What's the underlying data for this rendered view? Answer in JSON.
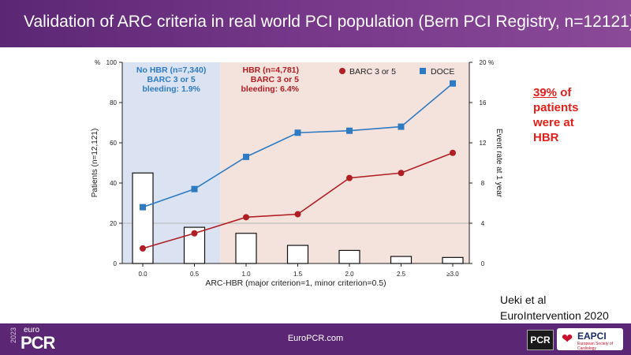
{
  "header": {
    "title": "Validation of ARC criteria in real world PCI population (Bern PCI Registry, n=12121)"
  },
  "side_note": {
    "line1_underlined": "39%",
    "line1_rest": " of",
    "line2": "patients",
    "line3": "were at",
    "line4": "HBR"
  },
  "reference": {
    "line1": "Ueki et al",
    "line2": "EuroIntervention 2020"
  },
  "footer": {
    "center": "EuroPCR.com",
    "logo_year": "2023",
    "logo_euro": "euro",
    "logo_pcr": "PCR",
    "badge_pcr": "PCR",
    "badge_eapci": "EAPCI",
    "badge_eapci_sub": "European Society of Cardiology"
  },
  "colors": {
    "header": "#5b2774",
    "no_hbr_bg": "#dbe3f3",
    "hbr_bg": "#f4e3dd",
    "barc": "#b01e24",
    "doce": "#2e7bc3",
    "no_hbr_text": "#2e7bc3",
    "hbr_text": "#b01e24",
    "highlight": "#e3201b"
  },
  "chart_data": {
    "type": "bar+line",
    "categories": [
      "0.0",
      "0.5",
      "1.0",
      "1.5",
      "2.0",
      "2.5",
      "≥3.0"
    ],
    "bars": {
      "axis": "left",
      "values": [
        45,
        18,
        15,
        9,
        6.5,
        3.5,
        3
      ]
    },
    "series": [
      {
        "name": "BARC 3 or 5",
        "axis": "right",
        "marker": "circle",
        "values": [
          1.5,
          3,
          4.6,
          4.9,
          8.5,
          9,
          11
        ]
      },
      {
        "name": "DOCE",
        "axis": "right",
        "marker": "square",
        "values": [
          5.6,
          7.4,
          10.6,
          13,
          13.2,
          13.6,
          17.9
        ]
      }
    ],
    "xlabel": "ARC-HBR (major criterion=1, minor criterion=0.5)",
    "ylabel_left": "Patients (n=12,121)",
    "ylabel_right": "Event rate at 1 year",
    "left_unit": "%",
    "right_unit": "%",
    "ylim_left": [
      0,
      100
    ],
    "ylim_right": [
      0,
      20
    ],
    "yticks_left": [
      "0",
      "20",
      "40",
      "60",
      "80",
      "100"
    ],
    "yticks_right": [
      "0",
      "4",
      "8",
      "12",
      "16",
      "20"
    ],
    "reference_line_left": 20,
    "regions": [
      {
        "label_lines": [
          "No HBR (n=7,340)",
          "BARC 3 or 5",
          "bleeding: 1.9%"
        ],
        "from_category": 0,
        "to_category": 1
      },
      {
        "label_lines": [
          "HBR (n=4,781)",
          "BARC 3 or 5",
          "bleeding: 6.4%"
        ],
        "from_category": 2,
        "to_category": 6
      }
    ],
    "legend_placement": "top-right"
  }
}
